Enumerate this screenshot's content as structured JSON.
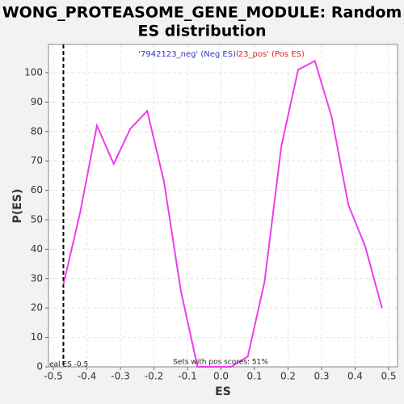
{
  "chart_data": {
    "type": "line",
    "title": [
      "WONG_PROTEASOME_GENE_MODULE: Random",
      "ES distribution"
    ],
    "x_label": "ES",
    "y_label": "P(ES)",
    "legend": [
      {
        "text": "'7942123_neg' (Neg ES)",
        "color": "#3333cc"
      },
      {
        "text": "l23_pos' (Pos ES)",
        "color": "#dd2222"
      }
    ],
    "annotations": [
      "eal ES -0.5",
      "Sets with pos scores: 51%"
    ],
    "real_es_line": -0.47,
    "x": [
      -0.47,
      -0.42,
      -0.37,
      -0.32,
      -0.27,
      -0.22,
      -0.17,
      -0.12,
      -0.07,
      -0.02,
      0.03,
      0.08,
      0.13,
      0.18,
      0.23,
      0.28,
      0.33,
      0.38,
      0.43,
      0.48
    ],
    "series": [
      {
        "color": "#ee3cee",
        "values": [
          28,
          52.5,
          82,
          69,
          81,
          87,
          63,
          26,
          0,
          0,
          0,
          3.5,
          29,
          75,
          101,
          104,
          85,
          55,
          41,
          20
        ]
      }
    ],
    "xlim": [
      -0.5145,
      0.5265
    ],
    "ylim": [
      0,
      109.6
    ],
    "xticks": [
      -0.5,
      -0.4,
      -0.3,
      -0.2,
      -0.1,
      {
        "value": 0,
        "label": "0.0"
      },
      0.1,
      0.2,
      0.3,
      0.4,
      0.5
    ],
    "yticks": [
      0,
      10,
      20,
      30,
      40,
      50,
      60,
      70,
      80,
      90,
      100
    ],
    "grid": true
  }
}
